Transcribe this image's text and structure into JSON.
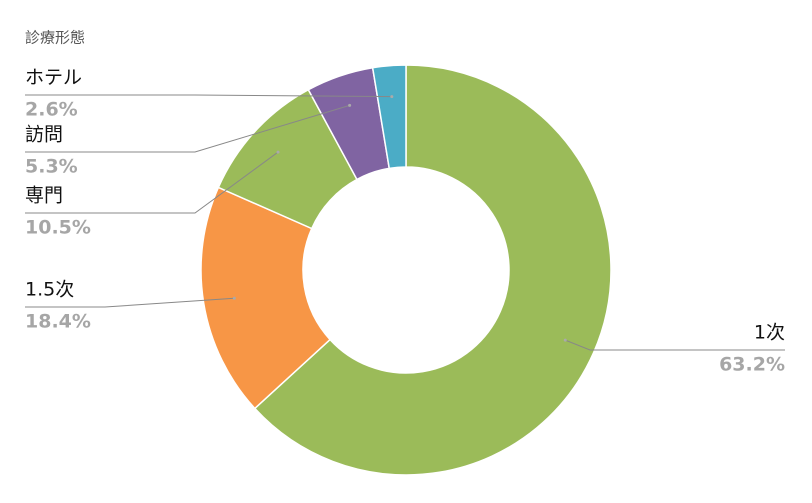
{
  "chart_data": {
    "type": "donut",
    "title": "診療形態",
    "categories": [
      "1次",
      "1.5次",
      "専門",
      "訪問",
      "ホテル"
    ],
    "values": [
      63.2,
      18.4,
      10.5,
      5.3,
      2.6
    ],
    "value_labels": [
      "63.2%",
      "18.4%",
      "10.5%",
      "5.3%",
      "2.6%"
    ],
    "colors": [
      "#9bbb59",
      "#f79646",
      "#9bbb59",
      "#8064a2",
      "#4bacc6"
    ]
  }
}
